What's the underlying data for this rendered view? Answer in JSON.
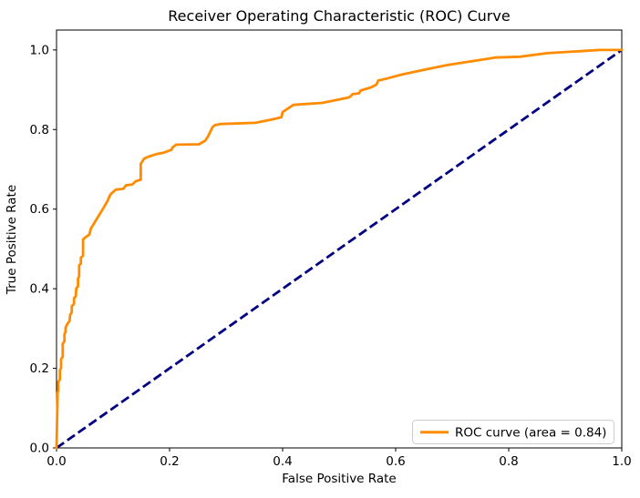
{
  "chart_data": {
    "type": "line",
    "title": "Receiver Operating Characteristic (ROC) Curve",
    "xlabel": "False Positive Rate",
    "ylabel": "True Positive Rate",
    "xlim": [
      0.0,
      1.0
    ],
    "ylim": [
      0.0,
      1.05
    ],
    "x_ticks": [
      0.0,
      0.2,
      0.4,
      0.6,
      0.8,
      1.0
    ],
    "x_tick_labels": [
      "0.0",
      "0.2",
      "0.4",
      "0.6",
      "0.8",
      "1.0"
    ],
    "y_ticks": [
      0.0,
      0.2,
      0.4,
      0.6,
      0.8,
      1.0
    ],
    "y_tick_labels": [
      "0.0",
      "0.2",
      "0.4",
      "0.6",
      "0.8",
      "1.0"
    ],
    "grid": false,
    "background_color": "#ffffff",
    "spine_color": "#000000",
    "auc": 0.84,
    "legend": {
      "position": "lower right",
      "border_color": "#cccccc",
      "background_color": "#ffffff",
      "entries": [
        {
          "label": "ROC curve (area = 0.84)",
          "color": "#ff8c00",
          "style": "solid"
        }
      ]
    },
    "series": [
      {
        "name": "ROC curve",
        "color": "#ff8c00",
        "style": "solid",
        "width": 2.8,
        "points": [
          [
            0.0,
            0.0
          ],
          [
            0.002,
            0.138
          ],
          [
            0.003,
            0.145
          ],
          [
            0.003,
            0.166
          ],
          [
            0.006,
            0.172
          ],
          [
            0.006,
            0.195
          ],
          [
            0.008,
            0.201
          ],
          [
            0.008,
            0.223
          ],
          [
            0.011,
            0.229
          ],
          [
            0.011,
            0.262
          ],
          [
            0.014,
            0.268
          ],
          [
            0.014,
            0.286
          ],
          [
            0.016,
            0.291
          ],
          [
            0.016,
            0.302
          ],
          [
            0.019,
            0.311
          ],
          [
            0.023,
            0.319
          ],
          [
            0.024,
            0.334
          ],
          [
            0.027,
            0.341
          ],
          [
            0.027,
            0.356
          ],
          [
            0.031,
            0.362
          ],
          [
            0.031,
            0.376
          ],
          [
            0.034,
            0.381
          ],
          [
            0.035,
            0.401
          ],
          [
            0.038,
            0.406
          ],
          [
            0.038,
            0.426
          ],
          [
            0.04,
            0.431
          ],
          [
            0.04,
            0.459
          ],
          [
            0.043,
            0.463
          ],
          [
            0.043,
            0.478
          ],
          [
            0.047,
            0.483
          ],
          [
            0.047,
            0.524
          ],
          [
            0.052,
            0.53
          ],
          [
            0.058,
            0.536
          ],
          [
            0.061,
            0.552
          ],
          [
            0.066,
            0.563
          ],
          [
            0.073,
            0.58
          ],
          [
            0.081,
            0.598
          ],
          [
            0.09,
            0.62
          ],
          [
            0.095,
            0.636
          ],
          [
            0.099,
            0.642
          ],
          [
            0.105,
            0.649
          ],
          [
            0.118,
            0.651
          ],
          [
            0.123,
            0.66
          ],
          [
            0.134,
            0.662
          ],
          [
            0.14,
            0.67
          ],
          [
            0.149,
            0.674
          ],
          [
            0.149,
            0.714
          ],
          [
            0.155,
            0.727
          ],
          [
            0.163,
            0.732
          ],
          [
            0.176,
            0.738
          ],
          [
            0.19,
            0.742
          ],
          [
            0.203,
            0.749
          ],
          [
            0.206,
            0.756
          ],
          [
            0.212,
            0.762
          ],
          [
            0.252,
            0.763
          ],
          [
            0.263,
            0.772
          ],
          [
            0.268,
            0.783
          ],
          [
            0.276,
            0.806
          ],
          [
            0.28,
            0.811
          ],
          [
            0.29,
            0.814
          ],
          [
            0.352,
            0.817
          ],
          [
            0.384,
            0.826
          ],
          [
            0.398,
            0.831
          ],
          [
            0.4,
            0.844
          ],
          [
            0.419,
            0.862
          ],
          [
            0.47,
            0.867
          ],
          [
            0.518,
            0.881
          ],
          [
            0.524,
            0.889
          ],
          [
            0.535,
            0.891
          ],
          [
            0.538,
            0.898
          ],
          [
            0.557,
            0.906
          ],
          [
            0.566,
            0.913
          ],
          [
            0.569,
            0.923
          ],
          [
            0.584,
            0.928
          ],
          [
            0.61,
            0.938
          ],
          [
            0.66,
            0.953
          ],
          [
            0.691,
            0.962
          ],
          [
            0.74,
            0.973
          ],
          [
            0.776,
            0.981
          ],
          [
            0.82,
            0.983
          ],
          [
            0.868,
            0.992
          ],
          [
            0.905,
            0.995
          ],
          [
            0.94,
            0.998
          ],
          [
            0.96,
            1.0
          ],
          [
            1.0,
            1.0
          ]
        ]
      },
      {
        "name": "Chance diagonal",
        "color": "#000080",
        "style": "dashed",
        "width": 2.8,
        "points": [
          [
            0.0,
            0.0
          ],
          [
            1.0,
            1.0
          ]
        ]
      }
    ]
  }
}
